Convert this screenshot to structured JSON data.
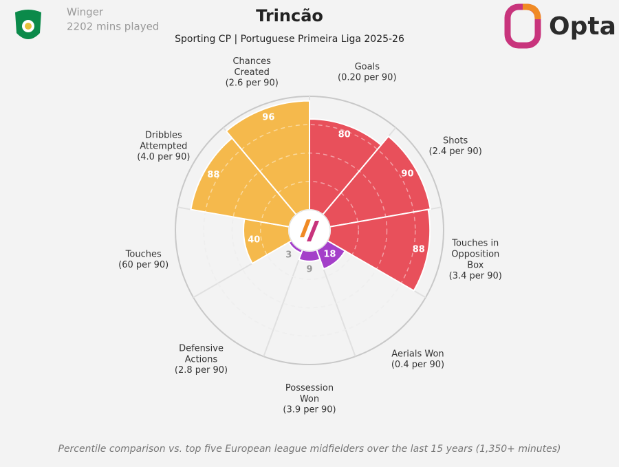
{
  "header": {
    "position": "Winger",
    "minutes": "2202 mins played",
    "brand": "Opta"
  },
  "chart_data": {
    "type": "pizza",
    "title": "Trincão",
    "subtitle": "Sporting CP | Portuguese Primeira Liga 2025-26",
    "categories": [
      "Goals",
      "Shots",
      "Touches in Opposition Box",
      "Aerials Won",
      "Possession Won",
      "Defensive Actions",
      "Touches",
      "Dribbles Attempted",
      "Chances Created"
    ],
    "per_90": [
      "(0.20 per 90)",
      "(2.4 per 90)",
      "(3.4 per 90)",
      "(0.4 per 90)",
      "(3.9 per 90)",
      "(2.8 per 90)",
      "(60 per 90)",
      "(4.0 per 90)",
      "(2.6 per 90)"
    ],
    "values": [
      80,
      90,
      88,
      18,
      9,
      3,
      40,
      88,
      96
    ],
    "colors": [
      "#e8505b",
      "#e8505b",
      "#e8505b",
      "#a43fc9",
      "#a43fc9",
      "#a43fc9",
      "#f5b94c",
      "#f5b94c",
      "#f5b94c"
    ],
    "rlim": [
      0,
      100
    ],
    "rticks": [
      25,
      50,
      75,
      100
    ]
  },
  "footnote": "Percentile comparison vs. top five European league midfielders over the last 15 years (1,350+ minutes)"
}
